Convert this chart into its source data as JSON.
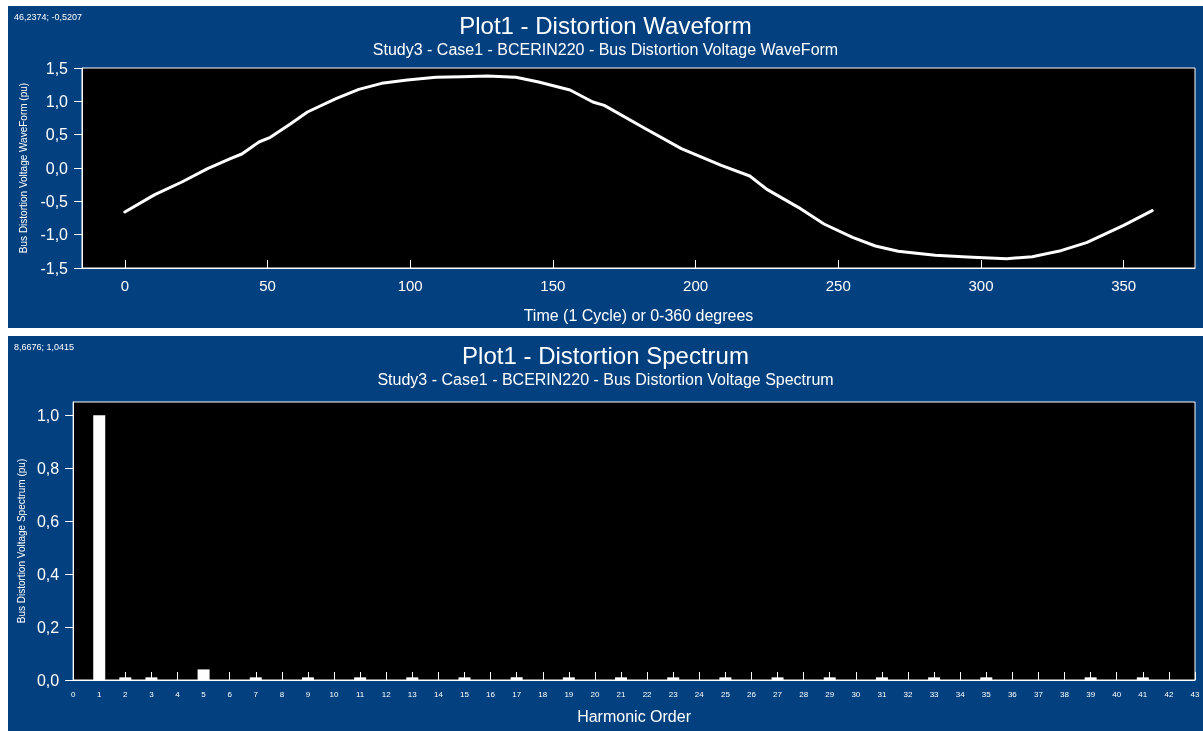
{
  "chart_data": [
    {
      "type": "line",
      "title": "Plot1 - Distortion Waveform",
      "subtitle": "Study3 - Case1 - BCERIN220 - Bus Distortion Voltage WaveForm",
      "xlabel": "Time (1 Cycle) or 0-360 degrees",
      "ylabel": "Bus Distortion Voltage WaveForm (pu)",
      "annotations": [
        "46,2374; -0,5207"
      ],
      "series": [
        {
          "color": "#ffffff",
          "x": [
            0,
            10.5,
            20,
            29,
            37,
            41,
            47,
            51,
            58,
            64,
            74,
            82,
            90,
            99,
            109,
            118,
            127,
            137,
            145,
            156,
            164,
            168,
            182,
            195,
            209,
            219,
            225,
            236,
            245,
            255,
            263,
            271,
            284,
            297,
            309,
            318,
            328,
            337,
            350,
            360
          ],
          "values": [
            -0.66,
            -0.4,
            -0.21,
            -0.01,
            0.14,
            0.21,
            0.39,
            0.46,
            0.66,
            0.84,
            1.04,
            1.18,
            1.27,
            1.32,
            1.36,
            1.37,
            1.38,
            1.36,
            1.29,
            1.17,
            0.99,
            0.94,
            0.6,
            0.29,
            0.04,
            -0.12,
            -0.32,
            -0.59,
            -0.84,
            -1.04,
            -1.17,
            -1.25,
            -1.31,
            -1.34,
            -1.36,
            -1.33,
            -1.24,
            -1.12,
            -0.86,
            -0.64
          ]
        }
      ],
      "xlim": [
        -15,
        375
      ],
      "xticks": [
        0,
        50,
        100,
        150,
        200,
        250,
        300,
        350
      ],
      "ylim": [
        -1.5,
        1.5
      ],
      "yticks": [
        {
          "value": -1.5,
          "label": "-1,5"
        },
        {
          "value": -1,
          "label": "-1,0"
        },
        {
          "value": -0.5,
          "label": "-0,5"
        },
        {
          "value": 0,
          "label": "0,0"
        },
        {
          "value": 0.5,
          "label": "0,5"
        },
        {
          "value": 1,
          "label": "1,0"
        },
        {
          "value": 1.5,
          "label": "1,5"
        }
      ],
      "marker": "none",
      "line_style": "solid"
    },
    {
      "type": "bar",
      "title": "Plot1 - Distortion Spectrum",
      "subtitle": "Study3 - Case1 - BCERIN220 - Bus Distortion Voltage Spectrum",
      "xlabel": "Harmonic Order",
      "ylabel": "Bus Distortion Voltage Spectrum (pu)",
      "annotations": [
        "8,6676; 1,0415"
      ],
      "x": [
        1,
        2,
        3,
        5,
        7,
        9,
        11,
        13,
        15,
        17,
        19,
        21,
        23,
        25,
        27,
        29,
        31,
        33,
        35,
        39,
        41
      ],
      "values": [
        1.0,
        0.01,
        0.01,
        0.04,
        0.01,
        0.01,
        0.01,
        0.01,
        0.01,
        0.01,
        0.01,
        0.01,
        0.01,
        0.01,
        0.01,
        0.01,
        0.01,
        0.01,
        0.01,
        0.01,
        0.01
      ],
      "color": "#ffffff",
      "xlim": [
        0,
        43
      ],
      "xticks": [
        0,
        1,
        2,
        3,
        4,
        5,
        6,
        7,
        8,
        9,
        10,
        11,
        12,
        13,
        14,
        15,
        16,
        17,
        18,
        19,
        20,
        21,
        22,
        23,
        24,
        25,
        26,
        27,
        28,
        29,
        30,
        31,
        32,
        33,
        34,
        35,
        36,
        37,
        38,
        39,
        40,
        41,
        42,
        43
      ],
      "ylim": [
        0,
        1.05
      ],
      "yticks": [
        {
          "value": 0,
          "label": "0,0"
        },
        {
          "value": 0.2,
          "label": "0,2"
        },
        {
          "value": 0.4,
          "label": "0,4"
        },
        {
          "value": 0.6,
          "label": "0,6"
        },
        {
          "value": 0.8,
          "label": "0,8"
        },
        {
          "value": 1,
          "label": "1,0"
        }
      ],
      "grid": false
    }
  ]
}
